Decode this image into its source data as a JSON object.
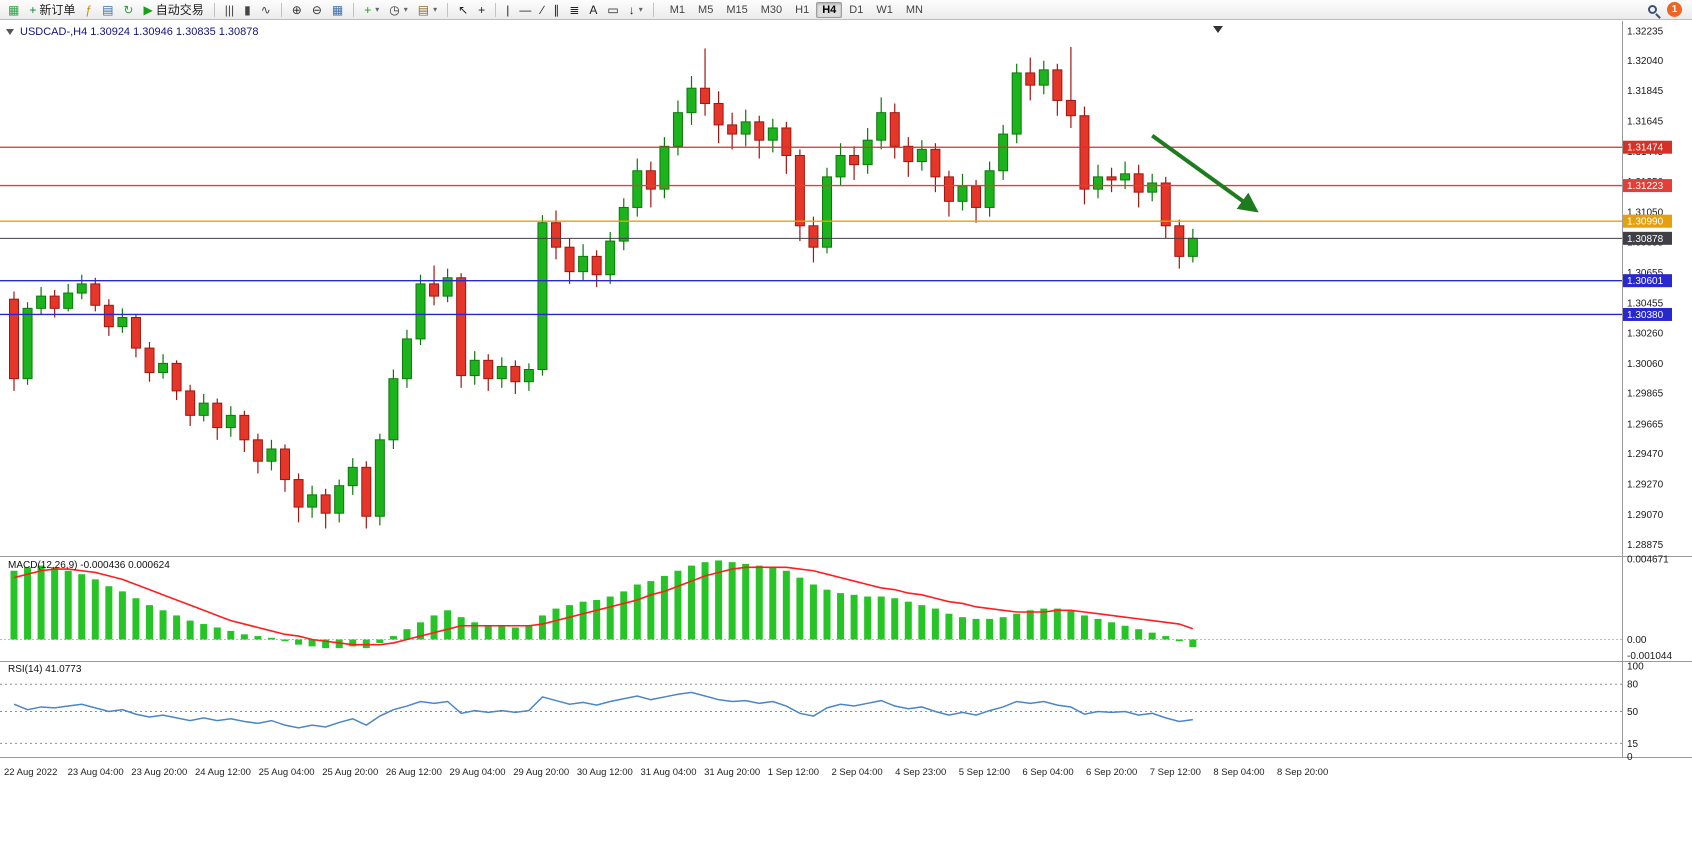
{
  "toolbar": {
    "caret_glyph": "▾",
    "items": [
      {
        "type": "icon",
        "name": "chart-window-icon",
        "glyph": "▦",
        "color": "#2f9e44"
      },
      {
        "type": "button",
        "name": "new-order-button",
        "glyph": "+",
        "color": "#157f3c",
        "label": "新订单"
      },
      {
        "type": "icon",
        "name": "expert-advisors-icon",
        "glyph": "ƒ",
        "color": "#c79100"
      },
      {
        "type": "icon",
        "name": "profiles-icon",
        "glyph": "▤",
        "color": "#3b6ea5"
      },
      {
        "type": "icon",
        "name": "refresh-icon",
        "glyph": "↻",
        "color": "#2f9e44"
      },
      {
        "type": "button",
        "name": "autotrade-button",
        "glyph": "▶",
        "color": "#18a018",
        "label": "自动交易"
      },
      {
        "type": "sep"
      },
      {
        "type": "icon",
        "name": "bar-chart-icon",
        "glyph": "|||",
        "color": "#444"
      },
      {
        "type": "icon",
        "name": "candlestick-chart-icon",
        "glyph": "▮",
        "color": "#444"
      },
      {
        "type": "icon",
        "name": "line-chart-icon",
        "glyph": "∿",
        "color": "#444"
      },
      {
        "type": "sep"
      },
      {
        "type": "icon",
        "name": "zoom-in-icon",
        "glyph": "⊕",
        "color": "#333"
      },
      {
        "type": "icon",
        "name": "zoom-out-icon",
        "glyph": "⊖",
        "color": "#333"
      },
      {
        "type": "icon",
        "name": "tile-windows-icon",
        "glyph": "▦",
        "color": "#3b6ea5"
      },
      {
        "type": "sep"
      },
      {
        "type": "icon",
        "name": "indicators-icon",
        "glyph": "+",
        "color": "#18a018",
        "caret": true
      },
      {
        "type": "icon",
        "name": "periods-icon",
        "glyph": "◷",
        "color": "#333",
        "caret": true
      },
      {
        "type": "icon",
        "name": "templates-icon",
        "glyph": "▤",
        "color": "#8a6b2f",
        "caret": true
      },
      {
        "type": "sep"
      },
      {
        "type": "icon",
        "name": "cursor-icon",
        "glyph": "↖",
        "color": "#222"
      },
      {
        "type": "icon",
        "name": "crosshair-icon",
        "glyph": "+",
        "color": "#222"
      },
      {
        "type": "sep"
      },
      {
        "type": "icon",
        "name": "vertical-line-icon",
        "glyph": "|",
        "color": "#222"
      },
      {
        "type": "icon",
        "name": "horizontal-line-icon",
        "glyph": "—",
        "color": "#222"
      },
      {
        "type": "icon",
        "name": "trendline-icon",
        "glyph": "∕",
        "color": "#222"
      },
      {
        "type": "icon",
        "name": "channel-icon",
        "glyph": "∥",
        "color": "#222"
      },
      {
        "type": "icon",
        "name": "fibonacci-icon",
        "glyph": "≣",
        "color": "#222"
      },
      {
        "type": "icon",
        "name": "text-icon",
        "glyph": "A",
        "color": "#222"
      },
      {
        "type": "icon",
        "name": "text-label-icon",
        "glyph": "▭",
        "color": "#222"
      },
      {
        "type": "icon",
        "name": "arrows-icon",
        "glyph": "↓",
        "color": "#222",
        "caret": true
      },
      {
        "type": "sep"
      },
      {
        "type": "tf-group"
      },
      {
        "type": "spacer"
      },
      {
        "type": "search",
        "name": "search-icon"
      },
      {
        "type": "badge",
        "name": "notification-badge",
        "label": "1"
      }
    ],
    "timeframes": {
      "items": [
        "M1",
        "M5",
        "M15",
        "M30",
        "H1",
        "H4",
        "D1",
        "W1",
        "MN"
      ],
      "active": "H4"
    }
  },
  "chart": {
    "symbol_ohlc_label": "USDCAD-,H4  1.30924 1.30946 1.30835 1.30878",
    "macd_label": "MACD(12,26,9) -0.000436 0.000624",
    "rsi_label": "RSI(14) 41.0773",
    "price_axis_ticks": [
      "1.32235",
      "1.32040",
      "1.31845",
      "1.31645",
      "1.31445",
      "1.31250",
      "1.31050",
      "1.30855",
      "1.30655",
      "1.30455",
      "1.30260",
      "1.30060",
      "1.29865",
      "1.29665",
      "1.29470",
      "1.29270",
      "1.29070",
      "1.28875"
    ]
  },
  "chart_data": {
    "type": "candlestick",
    "symbol": "USDCAD",
    "timeframe": "H4",
    "ohlc_current": {
      "open": 1.30924,
      "high": 1.30946,
      "low": 1.30835,
      "close": 1.30878
    },
    "ylim": [
      1.288,
      1.3228
    ],
    "up_color": "#1db31d",
    "down_color": "#e5362a",
    "candles": [
      [
        1.3048,
        1.3053,
        1.2988,
        1.2996
      ],
      [
        1.2996,
        1.3046,
        1.2992,
        1.3042
      ],
      [
        1.3042,
        1.3056,
        1.3038,
        1.305
      ],
      [
        1.305,
        1.3054,
        1.3036,
        1.3042
      ],
      [
        1.3042,
        1.3058,
        1.304,
        1.3052
      ],
      [
        1.3052,
        1.3064,
        1.3048,
        1.3058
      ],
      [
        1.3058,
        1.3062,
        1.304,
        1.3044
      ],
      [
        1.3044,
        1.3048,
        1.3024,
        1.303
      ],
      [
        1.303,
        1.3042,
        1.3026,
        1.3036
      ],
      [
        1.3036,
        1.3038,
        1.301,
        1.3016
      ],
      [
        1.3016,
        1.302,
        1.2994,
        1.3
      ],
      [
        1.3,
        1.3012,
        1.2996,
        1.3006
      ],
      [
        1.3006,
        1.3008,
        1.2982,
        1.2988
      ],
      [
        1.2988,
        1.2992,
        1.2965,
        1.2972
      ],
      [
        1.2972,
        1.2986,
        1.2968,
        1.298
      ],
      [
        1.298,
        1.2983,
        1.2956,
        1.2964
      ],
      [
        1.2964,
        1.2978,
        1.2958,
        1.2972
      ],
      [
        1.2972,
        1.2975,
        1.2948,
        1.2956
      ],
      [
        1.2956,
        1.296,
        1.2934,
        1.2942
      ],
      [
        1.2942,
        1.2956,
        1.2936,
        1.295
      ],
      [
        1.295,
        1.2953,
        1.2922,
        1.293
      ],
      [
        1.293,
        1.2934,
        1.2902,
        1.2912
      ],
      [
        1.2912,
        1.2926,
        1.2905,
        1.292
      ],
      [
        1.292,
        1.2924,
        1.2898,
        1.2908
      ],
      [
        1.2908,
        1.293,
        1.2902,
        1.2926
      ],
      [
        1.2926,
        1.2944,
        1.292,
        1.2938
      ],
      [
        1.2938,
        1.2942,
        1.2898,
        1.2906
      ],
      [
        1.2906,
        1.296,
        1.29,
        1.2956
      ],
      [
        1.2956,
        1.3002,
        1.295,
        1.2996
      ],
      [
        1.2996,
        1.3028,
        1.299,
        1.3022
      ],
      [
        1.3022,
        1.3064,
        1.3018,
        1.3058
      ],
      [
        1.3058,
        1.307,
        1.3044,
        1.305
      ],
      [
        1.305,
        1.3068,
        1.3046,
        1.3062
      ],
      [
        1.3062,
        1.3065,
        1.299,
        1.2998
      ],
      [
        1.2998,
        1.3014,
        1.2992,
        1.3008
      ],
      [
        1.3008,
        1.3012,
        1.2988,
        1.2996
      ],
      [
        1.2996,
        1.301,
        1.299,
        1.3004
      ],
      [
        1.3004,
        1.3008,
        1.2986,
        1.2994
      ],
      [
        1.2994,
        1.3006,
        1.2988,
        1.3002
      ],
      [
        1.3002,
        1.3103,
        1.2998,
        1.3098
      ],
      [
        1.3098,
        1.3106,
        1.3074,
        1.3082
      ],
      [
        1.3082,
        1.3088,
        1.3058,
        1.3066
      ],
      [
        1.3066,
        1.3084,
        1.306,
        1.3076
      ],
      [
        1.3076,
        1.308,
        1.3056,
        1.3064
      ],
      [
        1.3064,
        1.3092,
        1.3058,
        1.3086
      ],
      [
        1.3086,
        1.3114,
        1.308,
        1.3108
      ],
      [
        1.3108,
        1.314,
        1.3102,
        1.3132
      ],
      [
        1.3132,
        1.3138,
        1.3108,
        1.312
      ],
      [
        1.312,
        1.3154,
        1.3114,
        1.3148
      ],
      [
        1.3148,
        1.3178,
        1.3142,
        1.317
      ],
      [
        1.317,
        1.3194,
        1.3162,
        1.3186
      ],
      [
        1.3186,
        1.3212,
        1.3168,
        1.3176
      ],
      [
        1.3176,
        1.3184,
        1.315,
        1.3162
      ],
      [
        1.3162,
        1.317,
        1.3146,
        1.3156
      ],
      [
        1.3156,
        1.3172,
        1.3148,
        1.3164
      ],
      [
        1.3164,
        1.3168,
        1.314,
        1.3152
      ],
      [
        1.3152,
        1.3166,
        1.3144,
        1.316
      ],
      [
        1.316,
        1.3164,
        1.313,
        1.3142
      ],
      [
        1.3142,
        1.3146,
        1.3086,
        1.3096
      ],
      [
        1.3096,
        1.3102,
        1.3072,
        1.3082
      ],
      [
        1.3082,
        1.3134,
        1.3078,
        1.3128
      ],
      [
        1.3128,
        1.315,
        1.3122,
        1.3142
      ],
      [
        1.3142,
        1.3148,
        1.3126,
        1.3136
      ],
      [
        1.3136,
        1.316,
        1.313,
        1.3152
      ],
      [
        1.3152,
        1.318,
        1.3146,
        1.317
      ],
      [
        1.317,
        1.3176,
        1.314,
        1.3148
      ],
      [
        1.3148,
        1.3154,
        1.3128,
        1.3138
      ],
      [
        1.3138,
        1.3152,
        1.3132,
        1.3146
      ],
      [
        1.3146,
        1.315,
        1.3118,
        1.3128
      ],
      [
        1.3128,
        1.3132,
        1.3102,
        1.3112
      ],
      [
        1.3112,
        1.313,
        1.3106,
        1.3122
      ],
      [
        1.3122,
        1.3126,
        1.3098,
        1.3108
      ],
      [
        1.3108,
        1.3138,
        1.3102,
        1.3132
      ],
      [
        1.3132,
        1.3162,
        1.3126,
        1.3156
      ],
      [
        1.3156,
        1.3202,
        1.315,
        1.3196
      ],
      [
        1.3196,
        1.3206,
        1.3178,
        1.3188
      ],
      [
        1.3188,
        1.3204,
        1.3182,
        1.3198
      ],
      [
        1.3198,
        1.3202,
        1.3168,
        1.3178
      ],
      [
        1.3178,
        1.3213,
        1.316,
        1.3168
      ],
      [
        1.3168,
        1.3174,
        1.311,
        1.312
      ],
      [
        1.312,
        1.3136,
        1.3114,
        1.3128
      ],
      [
        1.3128,
        1.3134,
        1.3118,
        1.3126
      ],
      [
        1.3126,
        1.3138,
        1.312,
        1.313
      ],
      [
        1.313,
        1.3136,
        1.3108,
        1.3118
      ],
      [
        1.3118,
        1.313,
        1.3112,
        1.3124
      ],
      [
        1.3124,
        1.3128,
        1.3088,
        1.3096
      ],
      [
        1.3096,
        1.31,
        1.3068,
        1.3076
      ],
      [
        1.3076,
        1.3094,
        1.3072,
        1.30878
      ]
    ],
    "x_labels": [
      "22 Aug 2022",
      "23 Aug 04:00",
      "23 Aug 20:00",
      "24 Aug 12:00",
      "25 Aug 04:00",
      "25 Aug 20:00",
      "26 Aug 12:00",
      "29 Aug 04:00",
      "29 Aug 20:00",
      "30 Aug 12:00",
      "31 Aug 04:00",
      "31 Aug 20:00",
      "1 Sep 12:00",
      "2 Sep 04:00",
      "4 Sep 23:00",
      "5 Sep 12:00",
      "6 Sep 04:00",
      "6 Sep 20:00",
      "7 Sep 12:00",
      "8 Sep 04:00",
      "8 Sep 20:00"
    ],
    "horizontal_levels": [
      {
        "price": 1.31474,
        "label": "1.31474",
        "color": "#d93025"
      },
      {
        "price": 1.31223,
        "label": "1.31223",
        "color": "#e04038"
      },
      {
        "price": 1.3099,
        "label": "1.30990",
        "color": "#e5a00d"
      },
      {
        "price": 1.30601,
        "label": "1.30601",
        "color": "#2828cc"
      },
      {
        "price": 1.3038,
        "label": "1.30380",
        "color": "#2828cc"
      }
    ],
    "current_price": {
      "price": 1.30878,
      "label": "1.30878",
      "color": "#3f3f46"
    },
    "annotation_arrow": {
      "from_index": 84,
      "from_price": 1.3155,
      "to_index": 91.5,
      "to_price": 1.3107,
      "color": "#1e7c1e"
    },
    "indicators": {
      "macd": {
        "label": "MACD(12,26,9)",
        "current_values": [
          -0.000436,
          0.000624
        ],
        "ylim": [
          -0.00125,
          0.0048
        ],
        "axis_ticks": [
          "0.004671",
          "0.00",
          "-0.001044"
        ],
        "histogram_color": "#27c427",
        "signal_color": "#ff1e1e",
        "histogram": [
          0.004,
          0.0042,
          0.0043,
          0.0042,
          0.004,
          0.0038,
          0.0035,
          0.0031,
          0.0028,
          0.0024,
          0.002,
          0.0017,
          0.0014,
          0.0011,
          0.0009,
          0.0007,
          0.0005,
          0.0003,
          0.0002,
          0.0001,
          -0.0001,
          -0.0003,
          -0.0004,
          -0.0005,
          -0.0005,
          -0.0004,
          -0.0005,
          -0.0002,
          0.0002,
          0.0006,
          0.001,
          0.0014,
          0.0017,
          0.0013,
          0.001,
          0.0008,
          0.0008,
          0.0007,
          0.0008,
          0.0014,
          0.0018,
          0.002,
          0.0022,
          0.0023,
          0.0025,
          0.0028,
          0.0032,
          0.0034,
          0.0037,
          0.004,
          0.0043,
          0.0045,
          0.0046,
          0.0045,
          0.0044,
          0.0043,
          0.0042,
          0.004,
          0.0036,
          0.0032,
          0.0029,
          0.0027,
          0.0026,
          0.0025,
          0.0025,
          0.0024,
          0.0022,
          0.002,
          0.0018,
          0.0015,
          0.0013,
          0.0012,
          0.0012,
          0.0013,
          0.0015,
          0.0017,
          0.0018,
          0.0018,
          0.0017,
          0.0014,
          0.0012,
          0.001,
          0.0008,
          0.0006,
          0.0004,
          0.0002,
          -0.0001,
          -0.000436
        ],
        "signal": [
          0.0036,
          0.0038,
          0.004,
          0.0041,
          0.0041,
          0.004,
          0.0039,
          0.0037,
          0.0035,
          0.0032,
          0.0029,
          0.0026,
          0.0023,
          0.002,
          0.0017,
          0.0014,
          0.0011,
          0.0009,
          0.0007,
          0.0005,
          0.0003,
          0.0002,
          0.0,
          -0.0001,
          -0.0002,
          -0.0003,
          -0.0003,
          -0.0003,
          -0.0002,
          0.0,
          0.0002,
          0.0004,
          0.0006,
          0.0008,
          0.0008,
          0.0008,
          0.0008,
          0.0008,
          0.0008,
          0.0009,
          0.0011,
          0.0013,
          0.0015,
          0.0017,
          0.0019,
          0.0021,
          0.0023,
          0.0026,
          0.0028,
          0.0031,
          0.0034,
          0.0037,
          0.0039,
          0.0041,
          0.0042,
          0.0042,
          0.0042,
          0.0042,
          0.0041,
          0.004,
          0.0038,
          0.0036,
          0.0034,
          0.0032,
          0.003,
          0.0029,
          0.0027,
          0.0026,
          0.0024,
          0.0022,
          0.0021,
          0.0019,
          0.0018,
          0.0017,
          0.0016,
          0.0016,
          0.0016,
          0.0017,
          0.0017,
          0.0016,
          0.0015,
          0.0014,
          0.0013,
          0.0012,
          0.0011,
          0.001,
          0.0009,
          0.000624
        ]
      },
      "rsi": {
        "label": "RSI(14)",
        "current_value": 41.0773,
        "ylim": [
          0,
          100
        ],
        "levels": [
          80,
          50,
          15
        ],
        "axis_ticks": [
          "100",
          "80",
          "50",
          "15",
          "0"
        ],
        "line_color": "#4a86c8",
        "values": [
          58,
          52,
          55,
          54,
          56,
          58,
          54,
          50,
          52,
          47,
          44,
          46,
          43,
          40,
          43,
          40,
          42,
          39,
          37,
          40,
          35,
          32,
          35,
          33,
          38,
          42,
          35,
          45,
          52,
          56,
          61,
          59,
          61,
          48,
          51,
          49,
          51,
          49,
          51,
          66,
          62,
          58,
          60,
          57,
          61,
          64,
          67,
          63,
          66,
          69,
          71,
          67,
          63,
          61,
          62,
          59,
          61,
          56,
          48,
          45,
          54,
          58,
          56,
          59,
          62,
          56,
          53,
          55,
          50,
          46,
          49,
          46,
          51,
          55,
          61,
          59,
          61,
          57,
          55,
          47,
          50,
          49,
          50,
          46,
          48,
          43,
          39,
          41.0773
        ]
      }
    }
  }
}
